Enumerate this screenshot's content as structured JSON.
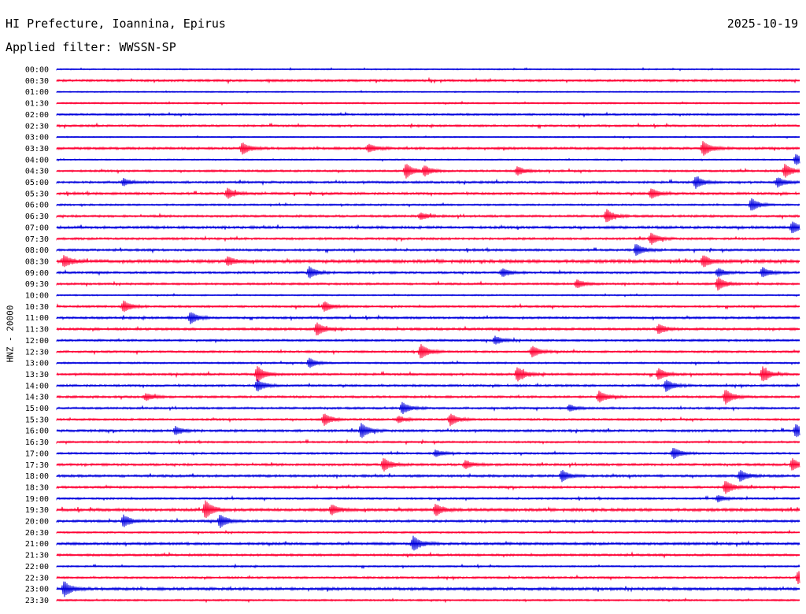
{
  "header": {
    "station": "HI Prefecture, Ioannina, Epirus",
    "date": "2025-10-19",
    "filter": "Applied filter: WWSSN-SP",
    "channel": "HNZ - 20000"
  },
  "colors": {
    "blue_trace": "#0000dd",
    "red_trace": "#ff0033",
    "text": "#000000"
  },
  "chart_data": {
    "type": "line",
    "title": "HI Prefecture, Ioannina, Epirus",
    "subtitle": "Applied filter: WWSSN-SP",
    "ylabel": "HNZ - 20000",
    "row_labels": [
      "00:00",
      "00:30",
      "01:00",
      "01:30",
      "02:00",
      "02:30",
      "03:00",
      "03:30",
      "04:00",
      "04:30",
      "05:00",
      "05:30",
      "06:00",
      "06:30",
      "07:00",
      "07:30",
      "08:00",
      "08:30",
      "09:00",
      "09:30",
      "10:00",
      "10:30",
      "11:00",
      "11:30",
      "12:00",
      "12:30",
      "13:00",
      "13:30",
      "14:00",
      "14:30",
      "15:00",
      "15:30",
      "16:00",
      "16:30",
      "17:00",
      "17:30",
      "18:00",
      "18:30",
      "19:00",
      "19:30",
      "20:00",
      "20:30",
      "21:00",
      "21:30",
      "22:00",
      "22:30",
      "23:00",
      "23:30"
    ],
    "row_colors": [
      "blue",
      "red"
    ],
    "noise_level": [
      0.8,
      1.4,
      0.7,
      1.0,
      1.2,
      1.3,
      0.8,
      1.5,
      0.8,
      1.3,
      1.4,
      1.5,
      1.1,
      1.4,
      1.6,
      1.4,
      1.4,
      2.0,
      1.4,
      1.3,
      0.9,
      1.3,
      1.4,
      1.5,
      1.3,
      1.3,
      1.1,
      1.4,
      1.4,
      1.4,
      1.3,
      1.3,
      1.5,
      1.2,
      1.2,
      1.5,
      1.5,
      1.4,
      1.2,
      1.8,
      1.5,
      1.1,
      1.6,
      1.4,
      1.0,
      1.3,
      1.8,
      1.1
    ],
    "events": [
      {
        "row": "03:30",
        "t": 0.25,
        "amp": 7
      },
      {
        "row": "03:30",
        "t": 0.42,
        "amp": 5
      },
      {
        "row": "03:30",
        "t": 0.87,
        "amp": 9
      },
      {
        "row": "04:00",
        "t": 0.995,
        "amp": 7
      },
      {
        "row": "04:30",
        "t": 0.47,
        "amp": 9
      },
      {
        "row": "04:30",
        "t": 0.495,
        "amp": 6
      },
      {
        "row": "04:30",
        "t": 0.62,
        "amp": 5
      },
      {
        "row": "04:30",
        "t": 0.98,
        "amp": 8
      },
      {
        "row": "05:00",
        "t": 0.09,
        "amp": 4
      },
      {
        "row": "05:00",
        "t": 0.86,
        "amp": 7
      },
      {
        "row": "05:00",
        "t": 0.97,
        "amp": 6
      },
      {
        "row": "05:30",
        "t": 0.23,
        "amp": 6
      },
      {
        "row": "05:30",
        "t": 0.8,
        "amp": 6
      },
      {
        "row": "06:00",
        "t": 0.935,
        "amp": 8
      },
      {
        "row": "06:30",
        "t": 0.49,
        "amp": 4
      },
      {
        "row": "06:30",
        "t": 0.74,
        "amp": 8
      },
      {
        "row": "07:00",
        "t": 0.99,
        "amp": 7
      },
      {
        "row": "07:30",
        "t": 0.8,
        "amp": 7
      },
      {
        "row": "08:00",
        "t": 0.78,
        "amp": 7
      },
      {
        "row": "08:30",
        "t": 0.01,
        "amp": 7
      },
      {
        "row": "08:30",
        "t": 0.23,
        "amp": 5
      },
      {
        "row": "08:30",
        "t": 0.87,
        "amp": 7
      },
      {
        "row": "09:00",
        "t": 0.34,
        "amp": 7
      },
      {
        "row": "09:00",
        "t": 0.6,
        "amp": 5
      },
      {
        "row": "09:00",
        "t": 0.89,
        "amp": 5
      },
      {
        "row": "09:00",
        "t": 0.95,
        "amp": 6
      },
      {
        "row": "09:30",
        "t": 0.7,
        "amp": 5
      },
      {
        "row": "09:30",
        "t": 0.89,
        "amp": 8
      },
      {
        "row": "10:30",
        "t": 0.09,
        "amp": 7
      },
      {
        "row": "10:30",
        "t": 0.36,
        "amp": 6
      },
      {
        "row": "11:00",
        "t": 0.18,
        "amp": 7
      },
      {
        "row": "11:30",
        "t": 0.35,
        "amp": 8
      },
      {
        "row": "11:30",
        "t": 0.81,
        "amp": 6
      },
      {
        "row": "12:00",
        "t": 0.59,
        "amp": 5
      },
      {
        "row": "12:30",
        "t": 0.49,
        "amp": 9
      },
      {
        "row": "12:30",
        "t": 0.64,
        "amp": 7
      },
      {
        "row": "13:00",
        "t": 0.34,
        "amp": 6
      },
      {
        "row": "13:30",
        "t": 0.27,
        "amp": 10
      },
      {
        "row": "13:30",
        "t": 0.62,
        "amp": 9
      },
      {
        "row": "13:30",
        "t": 0.81,
        "amp": 7
      },
      {
        "row": "13:30",
        "t": 0.95,
        "amp": 9
      },
      {
        "row": "14:00",
        "t": 0.27,
        "amp": 7
      },
      {
        "row": "14:00",
        "t": 0.82,
        "amp": 7
      },
      {
        "row": "14:30",
        "t": 0.12,
        "amp": 4
      },
      {
        "row": "14:30",
        "t": 0.73,
        "amp": 7
      },
      {
        "row": "14:30",
        "t": 0.9,
        "amp": 9
      },
      {
        "row": "15:00",
        "t": 0.465,
        "amp": 7
      },
      {
        "row": "15:00",
        "t": 0.69,
        "amp": 4
      },
      {
        "row": "15:30",
        "t": 0.36,
        "amp": 7
      },
      {
        "row": "15:30",
        "t": 0.46,
        "amp": 4
      },
      {
        "row": "15:30",
        "t": 0.53,
        "amp": 7
      },
      {
        "row": "16:00",
        "t": 0.16,
        "amp": 5
      },
      {
        "row": "16:00",
        "t": 0.41,
        "amp": 9
      },
      {
        "row": "16:00",
        "t": 0.995,
        "amp": 8
      },
      {
        "row": "17:00",
        "t": 0.51,
        "amp": 4
      },
      {
        "row": "17:00",
        "t": 0.83,
        "amp": 7
      },
      {
        "row": "17:30",
        "t": 0.44,
        "amp": 8
      },
      {
        "row": "17:30",
        "t": 0.55,
        "amp": 5
      },
      {
        "row": "17:30",
        "t": 0.99,
        "amp": 7
      },
      {
        "row": "18:00",
        "t": 0.68,
        "amp": 7
      },
      {
        "row": "18:00",
        "t": 0.92,
        "amp": 7
      },
      {
        "row": "18:30",
        "t": 0.9,
        "amp": 8
      },
      {
        "row": "19:00",
        "t": 0.89,
        "amp": 4
      },
      {
        "row": "19:30",
        "t": 0.2,
        "amp": 11
      },
      {
        "row": "19:30",
        "t": 0.37,
        "amp": 6
      },
      {
        "row": "19:30",
        "t": 0.51,
        "amp": 7
      },
      {
        "row": "20:00",
        "t": 0.09,
        "amp": 7
      },
      {
        "row": "20:00",
        "t": 0.22,
        "amp": 8
      },
      {
        "row": "21:00",
        "t": 0.48,
        "amp": 9
      },
      {
        "row": "22:30",
        "t": 0.998,
        "amp": 8
      },
      {
        "row": "23:00",
        "t": 0.01,
        "amp": 9
      }
    ]
  }
}
